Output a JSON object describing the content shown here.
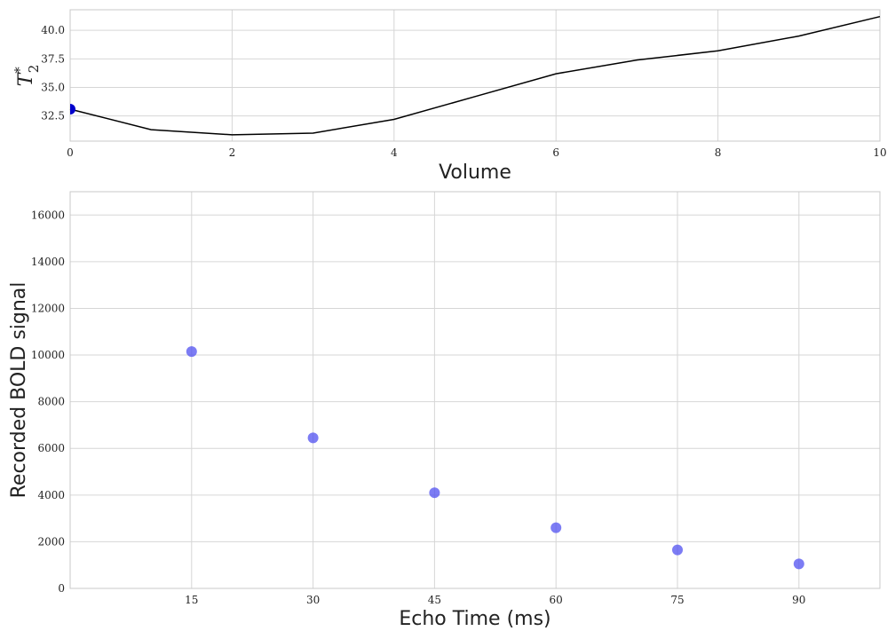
{
  "chart_data": [
    {
      "type": "line",
      "x": [
        0,
        1,
        2,
        3,
        4,
        5,
        6,
        7,
        8,
        9,
        10
      ],
      "series": [
        {
          "values": [
            33.1,
            31.3,
            30.85,
            31.0,
            32.2,
            34.2,
            36.2,
            37.4,
            38.2,
            39.5,
            41.2
          ],
          "color": "#000000"
        }
      ],
      "highlight_point": {
        "x": 0,
        "y": 33.1,
        "color": "#0000cc"
      },
      "xlabel": "Volume",
      "ylabel": "T",
      "ylabel_superscript": "*",
      "ylabel_subscript": "2",
      "xlim": [
        0,
        10
      ],
      "ylim": [
        30.3,
        41.8
      ],
      "xticks": [
        0,
        2,
        4,
        6,
        8,
        10
      ],
      "xtick_labels": [
        "0",
        "2",
        "4",
        "6",
        "8",
        "10"
      ],
      "yticks": [
        32.5,
        35.0,
        37.5,
        40.0
      ],
      "ytick_labels": [
        "32.5",
        "35.0",
        "37.5",
        "40.0"
      ],
      "grid": true
    },
    {
      "type": "scatter",
      "series": [
        {
          "x": [
            15,
            30,
            45,
            60,
            75,
            90
          ],
          "y": [
            10150,
            6450,
            4100,
            2600,
            1650,
            1050
          ],
          "color": "#5050f0"
        }
      ],
      "xlabel": "Echo Time (ms)",
      "ylabel": "Recorded BOLD signal",
      "xlim": [
        0,
        100
      ],
      "ylim": [
        0,
        17000
      ],
      "xticks": [
        15,
        30,
        45,
        60,
        75,
        90
      ],
      "xtick_labels": [
        "15",
        "30",
        "45",
        "60",
        "75",
        "90"
      ],
      "yticks": [
        0,
        2000,
        4000,
        6000,
        8000,
        10000,
        12000,
        14000,
        16000
      ],
      "ytick_labels": [
        "0",
        "2000",
        "4000",
        "6000",
        "8000",
        "10000",
        "12000",
        "14000",
        "16000"
      ],
      "grid": true
    }
  ]
}
